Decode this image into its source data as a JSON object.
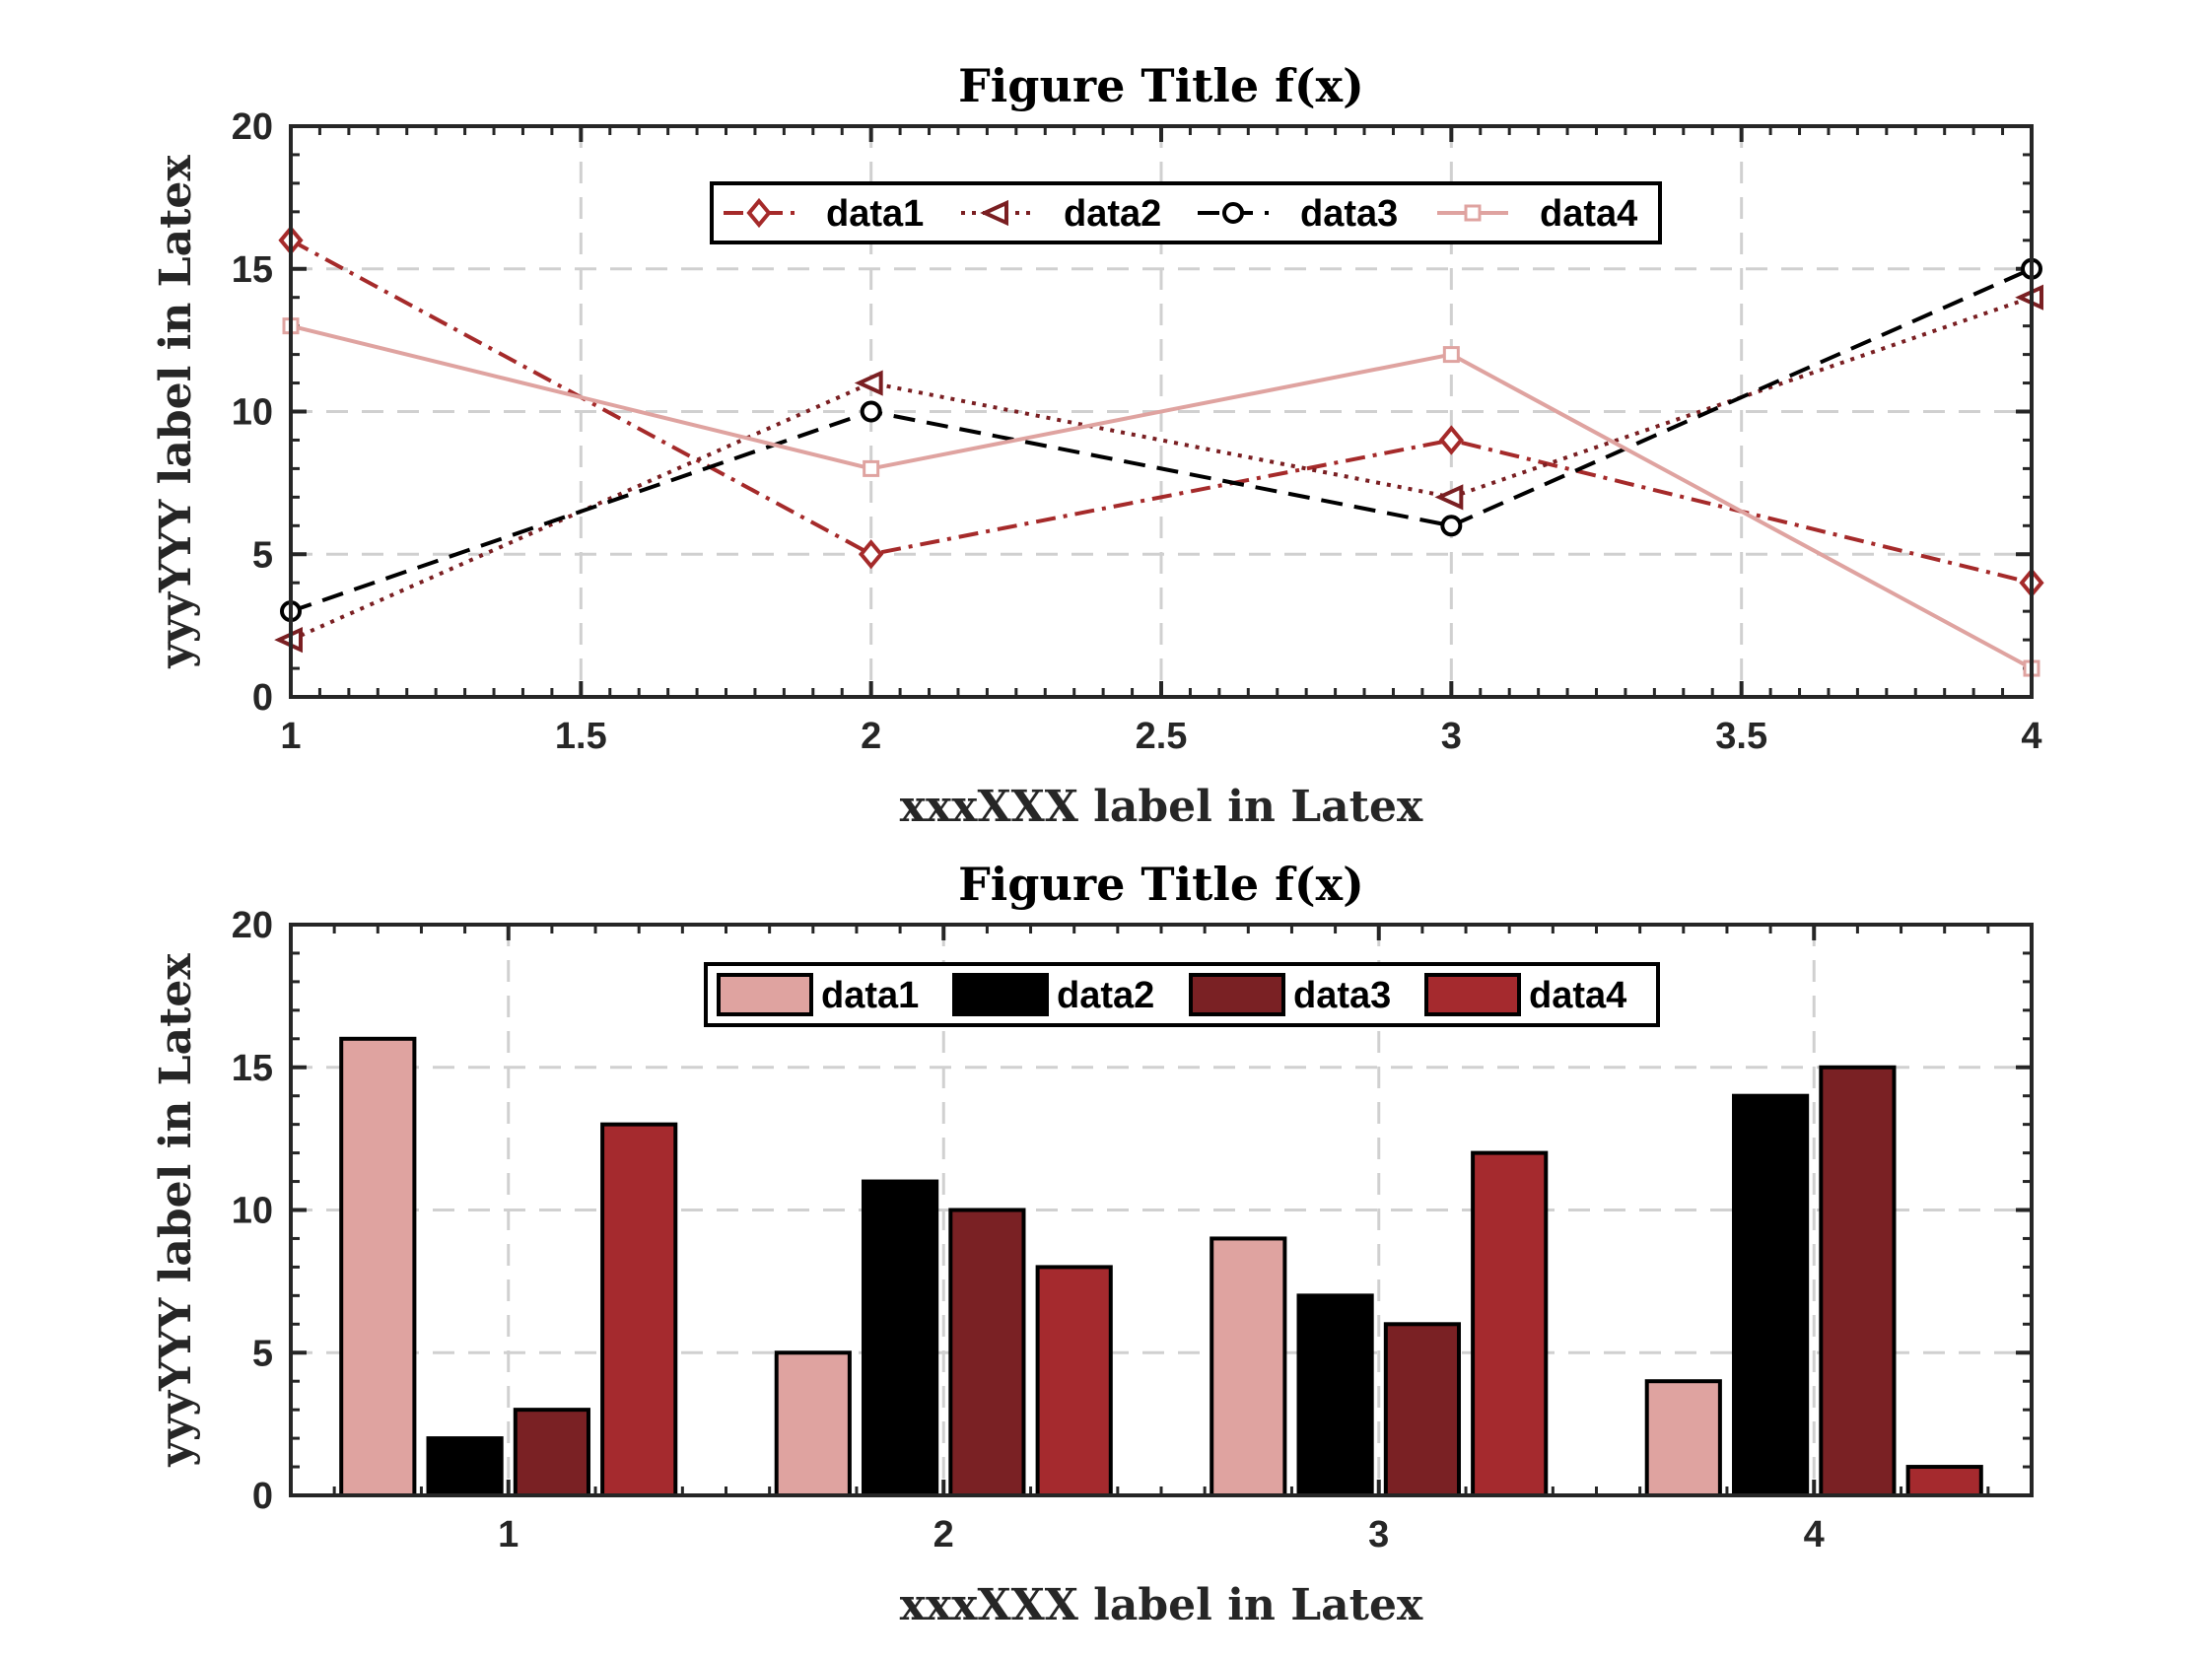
{
  "colors": {
    "data1": "#a52a2a",
    "data2": "#7a1f22",
    "data3": "#000000",
    "data4": "#dfa3a0",
    "bar_data1": "#dfa3a0",
    "bar_data2": "#000000",
    "bar_data3": "#7a2124",
    "bar_data4": "#a52a2e",
    "grid": "#d0d0d0",
    "axis": "#262626"
  },
  "chart_data": [
    {
      "type": "line",
      "title": "Figure Title f(x)",
      "xlabel": "xxxXXX label in Latex",
      "ylabel": "yyyYYY label in Latex",
      "xlim": [
        1,
        4
      ],
      "ylim": [
        0,
        20
      ],
      "xticks": [
        1,
        1.5,
        2,
        2.5,
        3,
        3.5,
        4
      ],
      "xtick_labels": [
        "1",
        "1.5",
        "2",
        "2.5",
        "3",
        "3.5",
        "4"
      ],
      "yticks": [
        0,
        5,
        10,
        15,
        20
      ],
      "ytick_labels": [
        "0",
        "5",
        "10",
        "15",
        "20"
      ],
      "grid": true,
      "legend": "top-center, horizontal",
      "x": [
        1,
        2,
        3,
        4
      ],
      "series": [
        {
          "name": "data1",
          "values": [
            16,
            5,
            9,
            4
          ],
          "line": "dash-dot",
          "marker": "diamond",
          "color_key": "data1"
        },
        {
          "name": "data2",
          "values": [
            2,
            11,
            7,
            14
          ],
          "line": "dotted",
          "marker": "triangle-left",
          "color_key": "data2"
        },
        {
          "name": "data3",
          "values": [
            3,
            10,
            6,
            15
          ],
          "line": "dashed",
          "marker": "circle",
          "color_key": "data3"
        },
        {
          "name": "data4",
          "values": [
            13,
            8,
            12,
            1
          ],
          "line": "solid",
          "marker": "square",
          "color_key": "data4"
        }
      ]
    },
    {
      "type": "bar",
      "title": "Figure Title f(x)",
      "xlabel": "xxxXXX label in Latex",
      "ylabel": "yyyYYY label in Latex",
      "ylim": [
        0,
        20
      ],
      "categories": [
        "1",
        "2",
        "3",
        "4"
      ],
      "yticks": [
        0,
        5,
        10,
        15,
        20
      ],
      "ytick_labels": [
        "0",
        "5",
        "10",
        "15",
        "20"
      ],
      "grid": true,
      "legend": "top-center, horizontal",
      "series": [
        {
          "name": "data1",
          "values": [
            16,
            5,
            9,
            4
          ],
          "color_key": "bar_data1"
        },
        {
          "name": "data2",
          "values": [
            2,
            11,
            7,
            14
          ],
          "color_key": "bar_data2"
        },
        {
          "name": "data3",
          "values": [
            3,
            10,
            6,
            15
          ],
          "color_key": "bar_data3"
        },
        {
          "name": "data4",
          "values": [
            13,
            8,
            12,
            1
          ],
          "color_key": "bar_data4"
        }
      ]
    }
  ]
}
